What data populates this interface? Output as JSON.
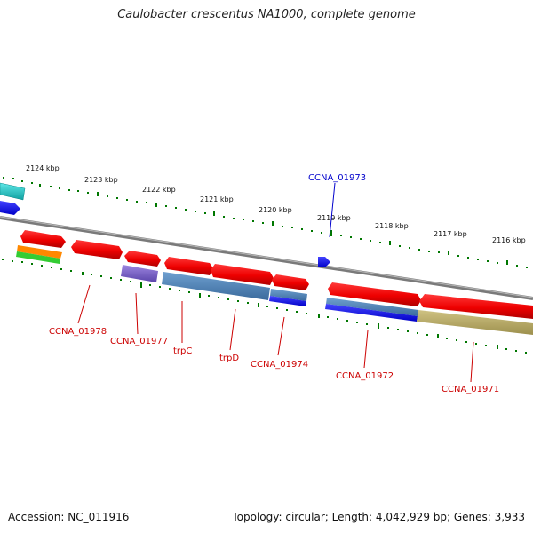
{
  "title": "Caulobacter crescentus NA1000, complete genome",
  "footer": {
    "accession": "Accession: NC_011916",
    "summary": "Topology: circular; Length: 4,042,929 bp; Genes: 3,933"
  },
  "scale_labels": [
    "2124 kbp",
    "2123 kbp",
    "2122 kbp",
    "2121 kbp",
    "2120 kbp",
    "2119 kbp",
    "2118 kbp",
    "2117 kbp",
    "2116 kbp"
  ],
  "gene_labels": [
    {
      "text": "CCNA_01973",
      "color": "#0000cc"
    },
    {
      "text": "CCNA_01978",
      "color": "#cc0000"
    },
    {
      "text": "CCNA_01977",
      "color": "#cc0000"
    },
    {
      "text": "trpC",
      "color": "#cc0000"
    },
    {
      "text": "trpD",
      "color": "#cc0000"
    },
    {
      "text": "CCNA_01974",
      "color": "#cc0000"
    },
    {
      "text": "CCNA_01972",
      "color": "#cc0000"
    },
    {
      "text": "CCNA_01971",
      "color": "#cc0000"
    }
  ],
  "colors": {
    "backbone": "#808080",
    "gene_red": "#ff0000",
    "gene_blue": "#0000ff",
    "cds_steel": "#4a7fb5",
    "cds_purple": "#7b5fc9",
    "cds_olive": "#b5a860",
    "cds_cyan": "#20c8c8",
    "cds_orange": "#ff8800",
    "cds_green": "#33cc33",
    "tick_green": "#007700"
  }
}
